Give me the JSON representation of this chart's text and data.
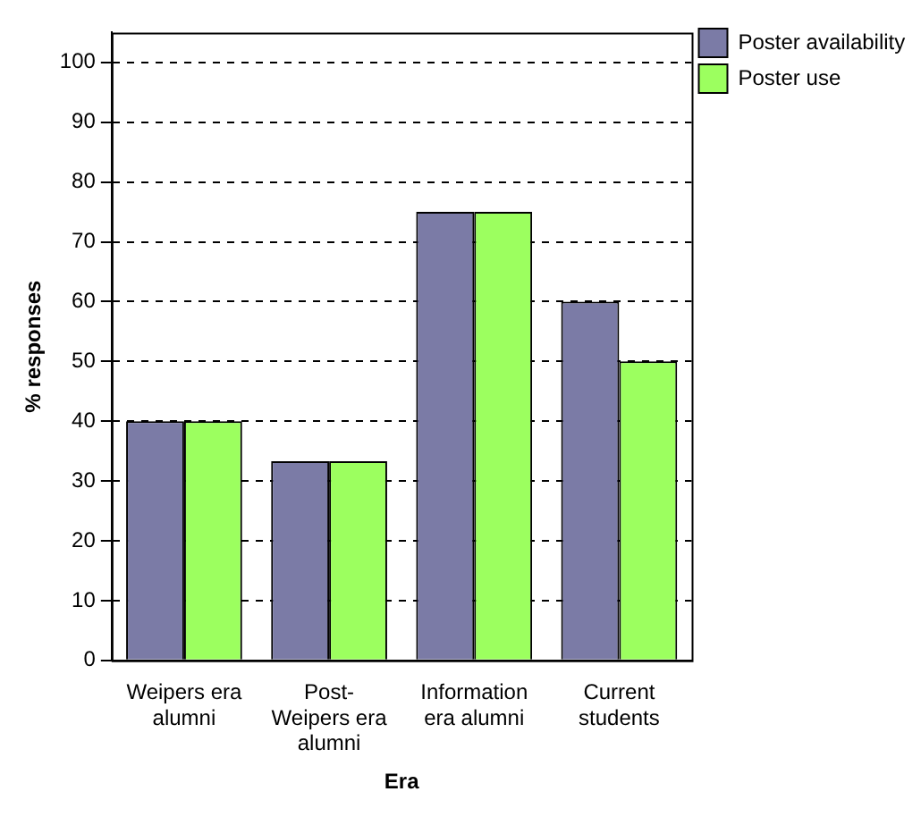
{
  "chart_data": {
    "type": "bar",
    "xlabel": "Era",
    "ylabel": "% responses",
    "categories": [
      "Weipers era alumni",
      "Post-Weipers era alumni",
      "Information era alumni",
      "Current students"
    ],
    "series": [
      {
        "name": "Poster availability",
        "color": "#7b7ba6",
        "values": [
          40,
          33.3,
          75,
          60
        ]
      },
      {
        "name": "Poster use",
        "color": "#9cff5f",
        "values": [
          40,
          33.3,
          75,
          50
        ]
      }
    ],
    "ylim": [
      0,
      105
    ],
    "yticks": [
      0,
      10,
      20,
      30,
      40,
      50,
      60,
      70,
      80,
      90,
      100
    ],
    "grid": "y",
    "legend": "top right"
  }
}
